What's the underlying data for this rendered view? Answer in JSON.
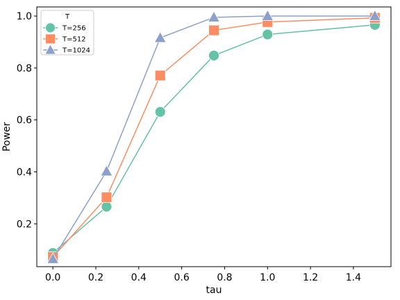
{
  "chart_data": {
    "type": "line",
    "xlabel": "tau",
    "ylabel": "Power",
    "xlim": [
      -0.075,
      1.575
    ],
    "ylim": [
      0.035,
      1.035
    ],
    "xticks": [
      0.0,
      0.2,
      0.4,
      0.6,
      0.8,
      1.0,
      1.2,
      1.4
    ],
    "xtick_labels": [
      "0.0",
      "0.2",
      "0.4",
      "0.6",
      "0.8",
      "1.0",
      "1.2",
      "1.4"
    ],
    "yticks": [
      0.2,
      0.4,
      0.6,
      0.8,
      1.0
    ],
    "ytick_labels": [
      "0.2",
      "0.4",
      "0.6",
      "0.8",
      "1.0"
    ],
    "grid": false,
    "legend": {
      "title": "T",
      "placement": "top-left"
    },
    "x": [
      0.0,
      0.25,
      0.5,
      0.75,
      1.0,
      1.5
    ],
    "series": [
      {
        "name": "T=256",
        "marker": "circle",
        "color": "#66c2a5",
        "values": [
          0.088,
          0.266,
          0.631,
          0.848,
          0.929,
          0.966
        ]
      },
      {
        "name": "T=512",
        "marker": "square",
        "color": "#fc8d62",
        "values": [
          0.072,
          0.302,
          0.771,
          0.945,
          0.977,
          0.993
        ]
      },
      {
        "name": "T=1024",
        "marker": "triangle",
        "color": "#8da0cb",
        "values": [
          0.065,
          0.402,
          0.916,
          0.995,
          1.0,
          1.0
        ]
      }
    ]
  }
}
